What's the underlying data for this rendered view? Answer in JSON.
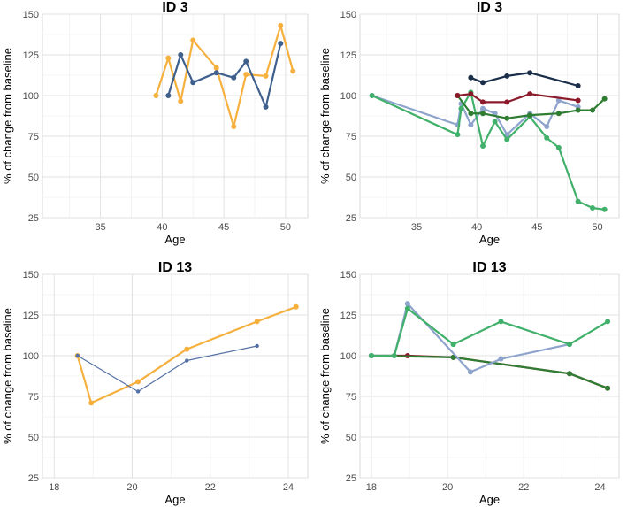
{
  "chart_data": [
    {
      "type": "line",
      "title": "ID 3",
      "xlabel": "Age",
      "ylabel": "% of change from baseline",
      "xlim": [
        30.3,
        51.8
      ],
      "ylim": [
        25,
        150
      ],
      "xticks": [
        35,
        40,
        45,
        50
      ],
      "yticks": [
        25,
        50,
        75,
        100,
        125,
        150
      ],
      "series": [
        {
          "name": "orange",
          "color": "#F5B03E",
          "thick": true,
          "x": [
            39.5,
            40.5,
            41.5,
            42.5,
            44.4,
            45.8,
            46.8,
            48.4,
            49.6,
            50.6
          ],
          "y": [
            100,
            123,
            96.5,
            134,
            117,
            81,
            113,
            112,
            143,
            115
          ]
        },
        {
          "name": "blue",
          "color": "#3F5F8C",
          "thick": true,
          "x": [
            40.5,
            41.5,
            42.5,
            44.4,
            45.8,
            46.8,
            48.4,
            49.6
          ],
          "y": [
            100,
            125,
            108,
            114,
            111,
            121,
            93,
            132
          ]
        }
      ]
    },
    {
      "type": "line",
      "title": "ID 3",
      "xlabel": "Age",
      "ylabel": "% of change from baseline",
      "xlim": [
        30.3,
        51.8
      ],
      "ylim": [
        25,
        150
      ],
      "xticks": [
        35,
        40,
        45,
        50
      ],
      "yticks": [
        25,
        50,
        75,
        100,
        125,
        150
      ],
      "series": [
        {
          "name": "lightblue",
          "color": "#8EA4CD",
          "thick": true,
          "x": [
            31.3,
            38.4,
            38.7,
            39.5,
            40.5,
            41.5,
            42.5,
            44.4,
            45.8,
            46.8,
            48.4
          ],
          "y": [
            100,
            82,
            95,
            82,
            92,
            89,
            76,
            89,
            81,
            97,
            93
          ]
        },
        {
          "name": "green",
          "color": "#40B06A",
          "thick": true,
          "x": [
            31.3,
            38.4,
            38.7,
            39.5,
            40.5,
            41.5,
            42.5,
            44.4,
            45.8,
            46.8,
            48.4,
            49.6,
            50.6
          ],
          "y": [
            100,
            76,
            92,
            102,
            69,
            84,
            73,
            87,
            74,
            68,
            35,
            31,
            30
          ]
        },
        {
          "name": "darkgreen",
          "color": "#2E7D32",
          "thick": true,
          "x": [
            38.4,
            39.5,
            40.5,
            42.5,
            44.4,
            46.8,
            48.4,
            49.6,
            50.6
          ],
          "y": [
            100,
            89,
            89,
            86,
            88,
            89,
            91,
            91,
            98
          ]
        },
        {
          "name": "darkred",
          "color": "#8B1A2B",
          "thick": true,
          "x": [
            38.4,
            39.5,
            40.5,
            42.5,
            44.4,
            48.4
          ],
          "y": [
            100,
            101,
            96,
            96,
            101,
            97
          ]
        },
        {
          "name": "navy",
          "color": "#1B2F4A",
          "thick": true,
          "x": [
            39.5,
            40.5,
            42.5,
            44.4,
            48.4
          ],
          "y": [
            111,
            108,
            112,
            114,
            106
          ]
        }
      ]
    },
    {
      "type": "line",
      "title": "ID 13",
      "xlabel": "Age",
      "ylabel": "% of change from baseline",
      "xlim": [
        17.7,
        24.5
      ],
      "ylim": [
        25,
        150
      ],
      "xticks": [
        18,
        20,
        22,
        24
      ],
      "yticks": [
        25,
        50,
        75,
        100,
        125,
        150
      ],
      "series": [
        {
          "name": "orange",
          "color": "#F5B03E",
          "thick": true,
          "x": [
            18.6,
            18.95,
            20.15,
            21.4,
            23.2,
            24.2
          ],
          "y": [
            100,
            71,
            84,
            104,
            121,
            130
          ]
        },
        {
          "name": "blue",
          "color": "#5470A4",
          "thick": false,
          "x": [
            18.6,
            20.15,
            21.4,
            23.2
          ],
          "y": [
            100,
            78,
            97,
            106
          ]
        }
      ]
    },
    {
      "type": "line",
      "title": "ID 13",
      "xlabel": "Age",
      "ylabel": "% of change from baseline",
      "xlim": [
        17.7,
        24.5
      ],
      "ylim": [
        25,
        150
      ],
      "xticks": [
        18,
        20,
        22,
        24
      ],
      "yticks": [
        25,
        50,
        75,
        100,
        125,
        150
      ],
      "series": [
        {
          "name": "darkred",
          "color": "#8B1A2B",
          "thick": true,
          "x": [
            18.0,
            18.95,
            20.15,
            23.2,
            24.2
          ],
          "y": [
            100,
            100,
            99,
            89,
            80
          ]
        },
        {
          "name": "darkgreen",
          "color": "#2E7D32",
          "thick": true,
          "x": [
            18.0,
            20.15,
            23.2,
            24.2
          ],
          "y": [
            100,
            99,
            89,
            80
          ]
        },
        {
          "name": "lightblue",
          "color": "#8EA4CD",
          "thick": true,
          "x": [
            18.0,
            18.6,
            18.95,
            20.6,
            21.4,
            23.2
          ],
          "y": [
            100,
            100,
            132,
            90,
            98,
            107
          ]
        },
        {
          "name": "green",
          "color": "#40B06A",
          "thick": true,
          "x": [
            18.0,
            18.6,
            18.95,
            20.15,
            21.4,
            23.2,
            24.2
          ],
          "y": [
            100,
            100,
            129,
            107,
            121,
            107,
            121
          ]
        }
      ]
    }
  ]
}
